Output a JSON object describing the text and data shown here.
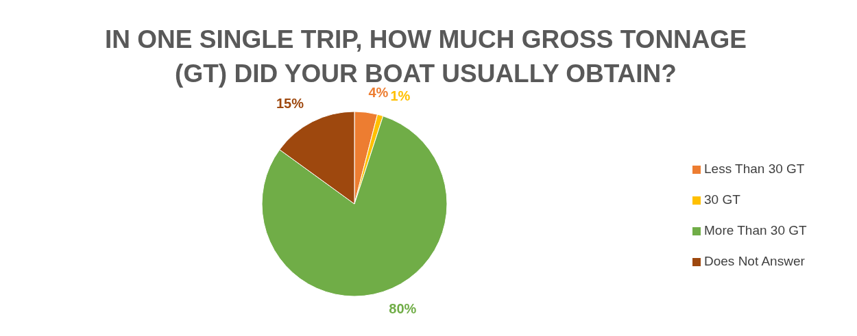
{
  "chart_data": {
    "type": "pie",
    "title": "IN ONE SINGLE TRIP, HOW MUCH GROSS TONNAGE (GT) DID YOUR BOAT USUALLY OBTAIN?",
    "categories": [
      "Less Than 30 GT",
      "30 GT",
      "More Than 30 GT",
      "Does Not Answer"
    ],
    "values": [
      4,
      1,
      80,
      15
    ],
    "colors": [
      "#ed7d31",
      "#ffc000",
      "#70ad47",
      "#9e480e"
    ],
    "value_labels": [
      "4%",
      "1%",
      "80%",
      "15%"
    ],
    "legend": "right"
  }
}
